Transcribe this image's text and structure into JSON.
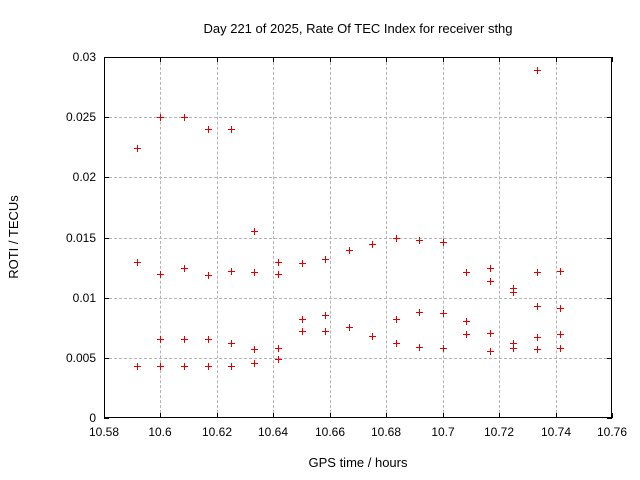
{
  "colors": {
    "background": "#ffffff",
    "marker": "#e00000",
    "grid": "#b4b4b4",
    "axis": "#000000",
    "text": "#000000"
  },
  "chart_data": {
    "type": "scatter",
    "title": "Day 221 of 2025, Rate Of TEC Index for receiver sthg",
    "xlabel": "GPS time / hours",
    "ylabel": "ROTI / TECUs",
    "xlim": [
      10.58,
      10.76
    ],
    "ylim": [
      0,
      0.03
    ],
    "x_tick_labels": [
      "10.58",
      "10.6",
      "10.62",
      "10.64",
      "10.66",
      "10.68",
      "10.7",
      "10.72",
      "10.74",
      "10.76"
    ],
    "y_tick_labels": [
      "0",
      "0.005",
      "0.01",
      "0.015",
      "0.02",
      "0.025",
      "0.03"
    ],
    "grid": true,
    "legend_position": "none",
    "marker": "plus",
    "series_name": "ROTI",
    "points": [
      [
        10.5917,
        0.0224
      ],
      [
        10.5917,
        0.013
      ],
      [
        10.5917,
        0.0043
      ],
      [
        10.6,
        0.025
      ],
      [
        10.6,
        0.012
      ],
      [
        10.6,
        0.0066
      ],
      [
        10.6,
        0.0043
      ],
      [
        10.6083,
        0.025
      ],
      [
        10.6083,
        0.0125
      ],
      [
        10.6083,
        0.0066
      ],
      [
        10.6083,
        0.0043
      ],
      [
        10.6167,
        0.024
      ],
      [
        10.6167,
        0.0119
      ],
      [
        10.6167,
        0.0066
      ],
      [
        10.6167,
        0.0043
      ],
      [
        10.625,
        0.024
      ],
      [
        10.625,
        0.0122
      ],
      [
        10.625,
        0.0062
      ],
      [
        10.625,
        0.0043
      ],
      [
        10.6333,
        0.0155
      ],
      [
        10.6333,
        0.0121
      ],
      [
        10.6333,
        0.0057
      ],
      [
        10.6333,
        0.0046
      ],
      [
        10.6417,
        0.013
      ],
      [
        10.6417,
        0.012
      ],
      [
        10.6417,
        0.0058
      ],
      [
        10.6417,
        0.0049
      ],
      [
        10.65,
        0.0129
      ],
      [
        10.65,
        0.0082
      ],
      [
        10.65,
        0.0072
      ],
      [
        10.6583,
        0.0132
      ],
      [
        10.6583,
        0.0086
      ],
      [
        10.6583,
        0.0072
      ],
      [
        10.6667,
        0.014
      ],
      [
        10.6667,
        0.0076
      ],
      [
        10.675,
        0.0145
      ],
      [
        10.675,
        0.0068
      ],
      [
        10.6833,
        0.015
      ],
      [
        10.6833,
        0.0082
      ],
      [
        10.6833,
        0.0062
      ],
      [
        10.6917,
        0.0148
      ],
      [
        10.6917,
        0.0088
      ],
      [
        10.6917,
        0.0059
      ],
      [
        10.7,
        0.0146
      ],
      [
        10.7,
        0.0087
      ],
      [
        10.7,
        0.0058
      ],
      [
        10.7083,
        0.0121
      ],
      [
        10.7083,
        0.0081
      ],
      [
        10.7083,
        0.007
      ],
      [
        10.7167,
        0.0125
      ],
      [
        10.7167,
        0.0114
      ],
      [
        10.7167,
        0.0071
      ],
      [
        10.7167,
        0.0056
      ],
      [
        10.725,
        0.0108
      ],
      [
        10.725,
        0.0105
      ],
      [
        10.725,
        0.0062
      ],
      [
        10.725,
        0.0058
      ],
      [
        10.7333,
        0.0289
      ],
      [
        10.7333,
        0.0121
      ],
      [
        10.7333,
        0.0093
      ],
      [
        10.7333,
        0.0067
      ],
      [
        10.7333,
        0.0057
      ],
      [
        10.7417,
        0.0122
      ],
      [
        10.7417,
        0.0091
      ],
      [
        10.7417,
        0.007
      ],
      [
        10.7417,
        0.0058
      ]
    ]
  }
}
